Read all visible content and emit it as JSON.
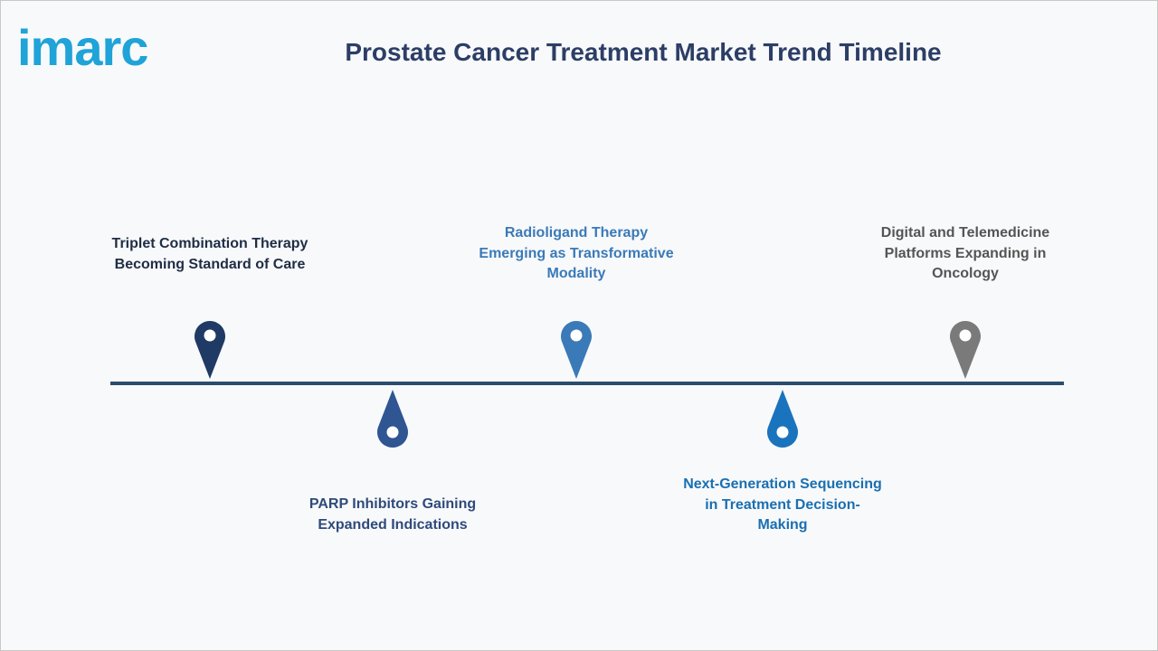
{
  "header": {
    "logo": "imarc",
    "title": "Prostate Cancer Treatment Market Trend Timeline"
  },
  "timeline": {
    "items": [
      {
        "lines": [
          "Triplet Combination Therapy",
          "Becoming Standard of Care"
        ]
      },
      {
        "lines": [
          "PARP Inhibitors Gaining",
          "Expanded Indications"
        ]
      },
      {
        "lines": [
          "Radioligand Therapy",
          "Emerging as Transformative",
          "Modality"
        ]
      },
      {
        "lines": [
          "Next-Generation Sequencing",
          "in Treatment Decision-",
          "Making"
        ]
      },
      {
        "lines": [
          "Digital and Telemedicine",
          "Platforms Expanding in",
          "Oncology"
        ]
      }
    ]
  }
}
